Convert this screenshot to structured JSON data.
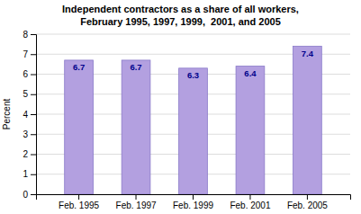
{
  "chart_data": {
    "type": "bar",
    "title": "Independent contractors as a share of all workers,\nFebruary 1995, 1997, 1999,  2001, and 2005",
    "ylabel": "Percent",
    "categories": [
      "Feb. 1995",
      "Feb. 1997",
      "Feb. 1999",
      "Feb. 2001",
      "Feb. 2005"
    ],
    "values": [
      6.7,
      6.7,
      6.3,
      6.4,
      7.4
    ],
    "color": "#b3a0e0",
    "ylim": [
      0,
      8
    ],
    "yticks": [
      0,
      1,
      2,
      3,
      4,
      5,
      6,
      7,
      8
    ],
    "grid": true,
    "data_labels": true
  }
}
